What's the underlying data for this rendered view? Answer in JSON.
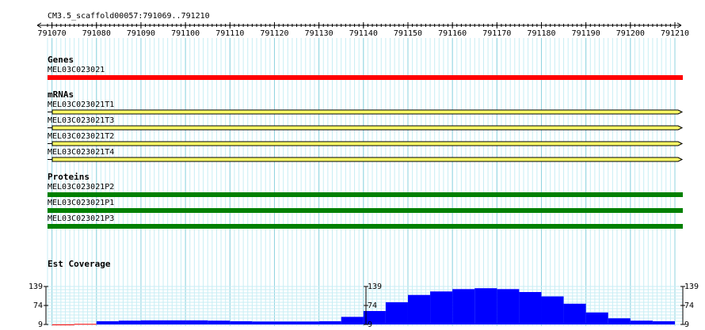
{
  "ruler": {
    "label": "CM3.5_scaffold00057:791069..791210",
    "xlim": [
      791069,
      791210
    ],
    "xticks": [
      791070,
      791080,
      791090,
      791100,
      791110,
      791120,
      791130,
      791140,
      791150,
      791160,
      791170,
      791180,
      791190,
      791200,
      791210
    ]
  },
  "tracks": [
    {
      "title": "Genes",
      "kind": "gene",
      "color": "#ff0000",
      "features": [
        "MEL03C023021"
      ]
    },
    {
      "title": "mRNAs",
      "kind": "mrna",
      "color": "#ffff66",
      "features": [
        "MEL03C023021T1",
        "MEL03C023021T3",
        "MEL03C023021T2",
        "MEL03C023021T4"
      ]
    },
    {
      "title": "Proteins",
      "kind": "protein",
      "color": "#008000",
      "features": [
        "MEL03C023021P2",
        "MEL03C023021P1",
        "MEL03C023021P3"
      ]
    }
  ],
  "coverage": {
    "title": "Est Coverage",
    "x": [
      791070,
      791075,
      791080,
      791085,
      791090,
      791095,
      791100,
      791105,
      791110,
      791115,
      791120,
      791125,
      791130,
      791135,
      791140,
      791145,
      791150,
      791155,
      791160,
      791165,
      791170,
      791175,
      791180,
      791185,
      791190,
      791195,
      791200,
      791205
    ],
    "values": [
      9,
      11,
      20,
      22,
      23,
      23,
      23,
      22,
      20,
      19,
      19,
      19,
      20,
      35,
      55,
      85,
      110,
      122,
      130,
      133,
      130,
      120,
      105,
      80,
      50,
      30,
      22,
      20
    ],
    "colors": [
      "#ff0000",
      "#ff0000",
      "#0000ff",
      "#0000ff",
      "#0000ff",
      "#0000ff",
      "#0000ff",
      "#0000ff",
      "#0000ff",
      "#0000ff",
      "#0000ff",
      "#0000ff",
      "#0000ff",
      "#0000ff",
      "#0000ff",
      "#0000ff",
      "#0000ff",
      "#0000ff",
      "#0000ff",
      "#0000ff",
      "#0000ff",
      "#0000ff",
      "#0000ff",
      "#0000ff",
      "#0000ff",
      "#0000ff",
      "#0000ff",
      "#0000ff"
    ],
    "ylim": [
      9,
      139
    ],
    "yticks": [
      9,
      74,
      139
    ]
  }
}
